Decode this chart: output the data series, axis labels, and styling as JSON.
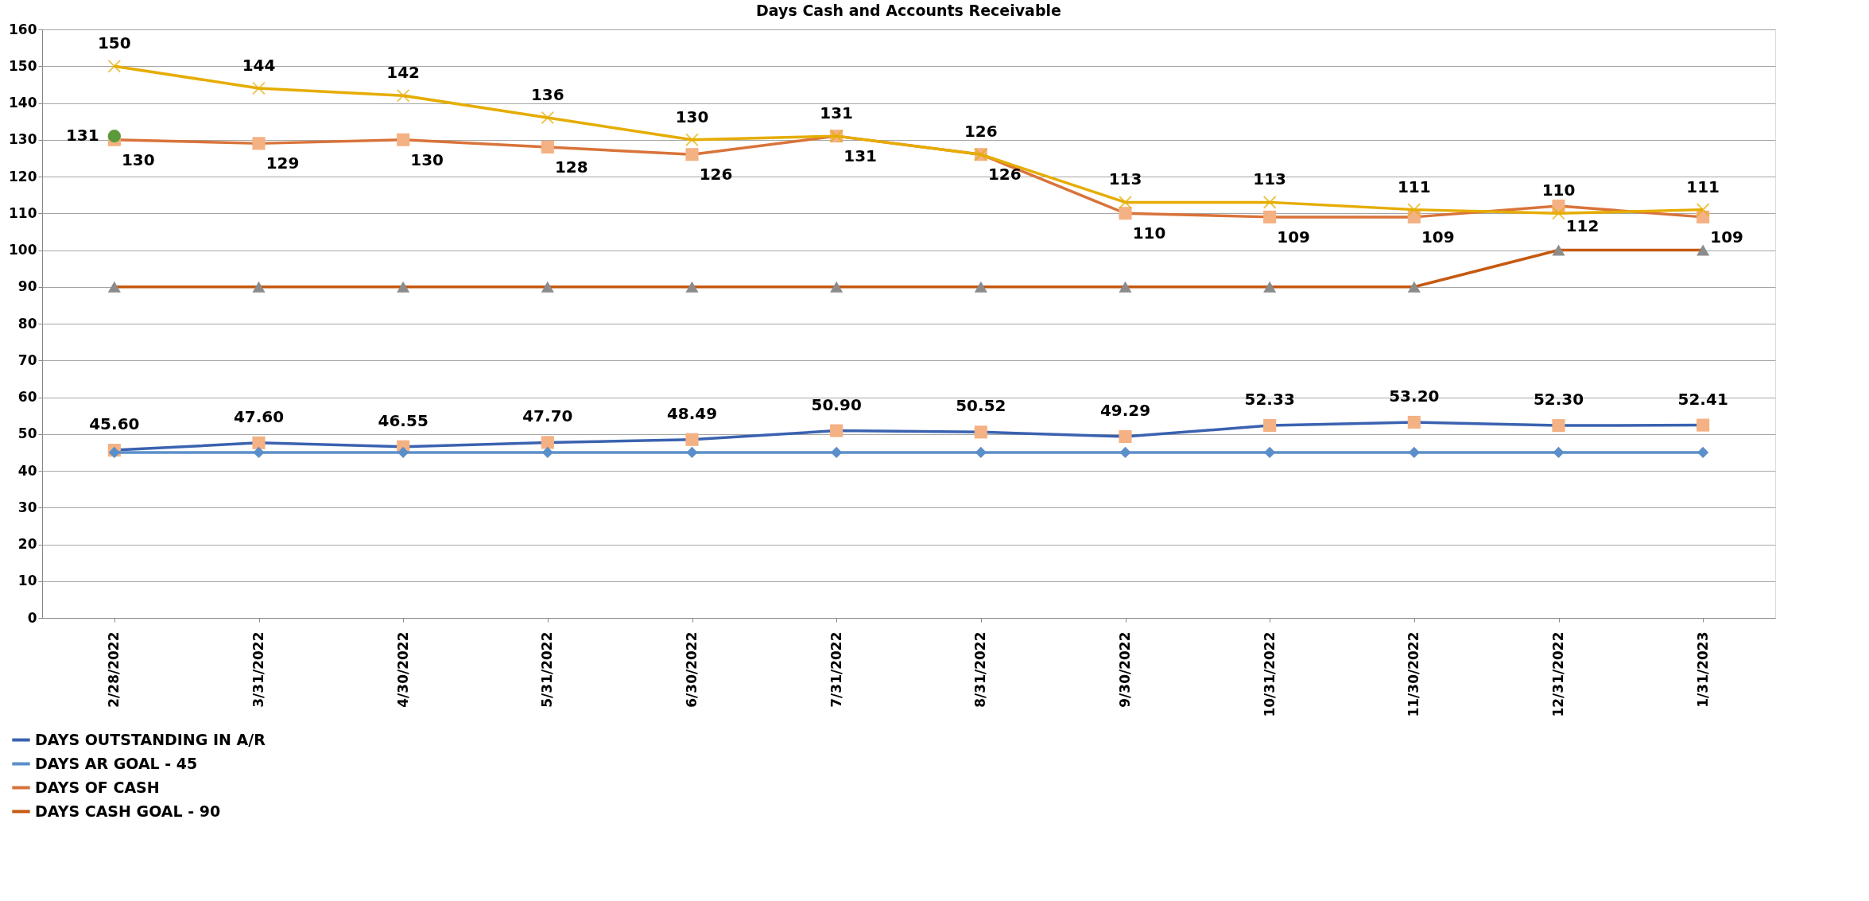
{
  "chart_data": {
    "type": "line",
    "title": "Days Cash and Accounts Receivable",
    "categories": [
      "2/28/2022",
      "3/31/2022",
      "4/30/2022",
      "5/31/2022",
      "6/30/2022",
      "7/31/2022",
      "8/31/2022",
      "9/30/2022",
      "10/31/2022",
      "11/30/2022",
      "12/31/2022",
      "1/31/2023"
    ],
    "series": [
      {
        "name": "DAYS OUTSTANDING IN A/R",
        "color": "#3a62b0",
        "marker": "square",
        "values": [
          45.6,
          47.6,
          46.55,
          47.7,
          48.49,
          50.9,
          50.52,
          49.29,
          52.33,
          53.2,
          52.3,
          52.41
        ],
        "value_labels": [
          "45.60",
          "47.60",
          "46.55",
          "47.70",
          "48.49",
          "50.90",
          "50.52",
          "49.29",
          "52.33",
          "53.20",
          "52.30",
          "52.41"
        ]
      },
      {
        "name": "DAYS AR GOAL - 45",
        "color": "#5b8fc9",
        "marker": "diamond",
        "values": [
          45,
          45,
          45,
          45,
          45,
          45,
          45,
          45,
          45,
          45,
          45,
          45
        ]
      },
      {
        "name": "DAYS OF CASH",
        "color": "#d9733a",
        "marker": "square",
        "values": [
          130,
          129,
          130,
          128,
          126,
          131,
          126,
          110,
          109,
          109,
          112,
          109
        ],
        "value_labels": [
          "130",
          "129",
          "130",
          "128",
          "126",
          "131",
          "126",
          "110",
          "109",
          "109",
          "112",
          "109"
        ]
      },
      {
        "name": "DAYS CASH GOAL - 90",
        "color": "#c55a11",
        "marker": "triangle",
        "values": [
          90,
          90,
          90,
          90,
          90,
          90,
          90,
          90,
          90,
          90,
          100,
          100
        ]
      },
      {
        "color": "#e6ac00",
        "marker": "cross",
        "values": [
          150,
          144,
          142,
          136,
          130,
          131,
          126,
          113,
          113,
          111,
          110,
          111
        ],
        "value_labels": [
          "150",
          "144",
          "142",
          "136",
          "130",
          "131",
          "126",
          "113",
          "113",
          "111",
          "110",
          "111"
        ]
      },
      {
        "color": "#5a9a3a",
        "type": "scatter",
        "marker": "circle",
        "values": [
          131,
          null,
          null,
          null,
          null,
          null,
          null,
          null,
          null,
          null,
          null,
          null
        ],
        "value_labels": [
          "131",
          null,
          null,
          null,
          null,
          null,
          null,
          null,
          null,
          null,
          null,
          null
        ]
      }
    ],
    "ylim": [
      0,
      160
    ],
    "yticks": [
      0,
      10,
      20,
      30,
      40,
      50,
      60,
      70,
      80,
      90,
      100,
      110,
      120,
      130,
      140,
      150,
      160
    ],
    "grid": "y",
    "legend": "bottom left"
  }
}
